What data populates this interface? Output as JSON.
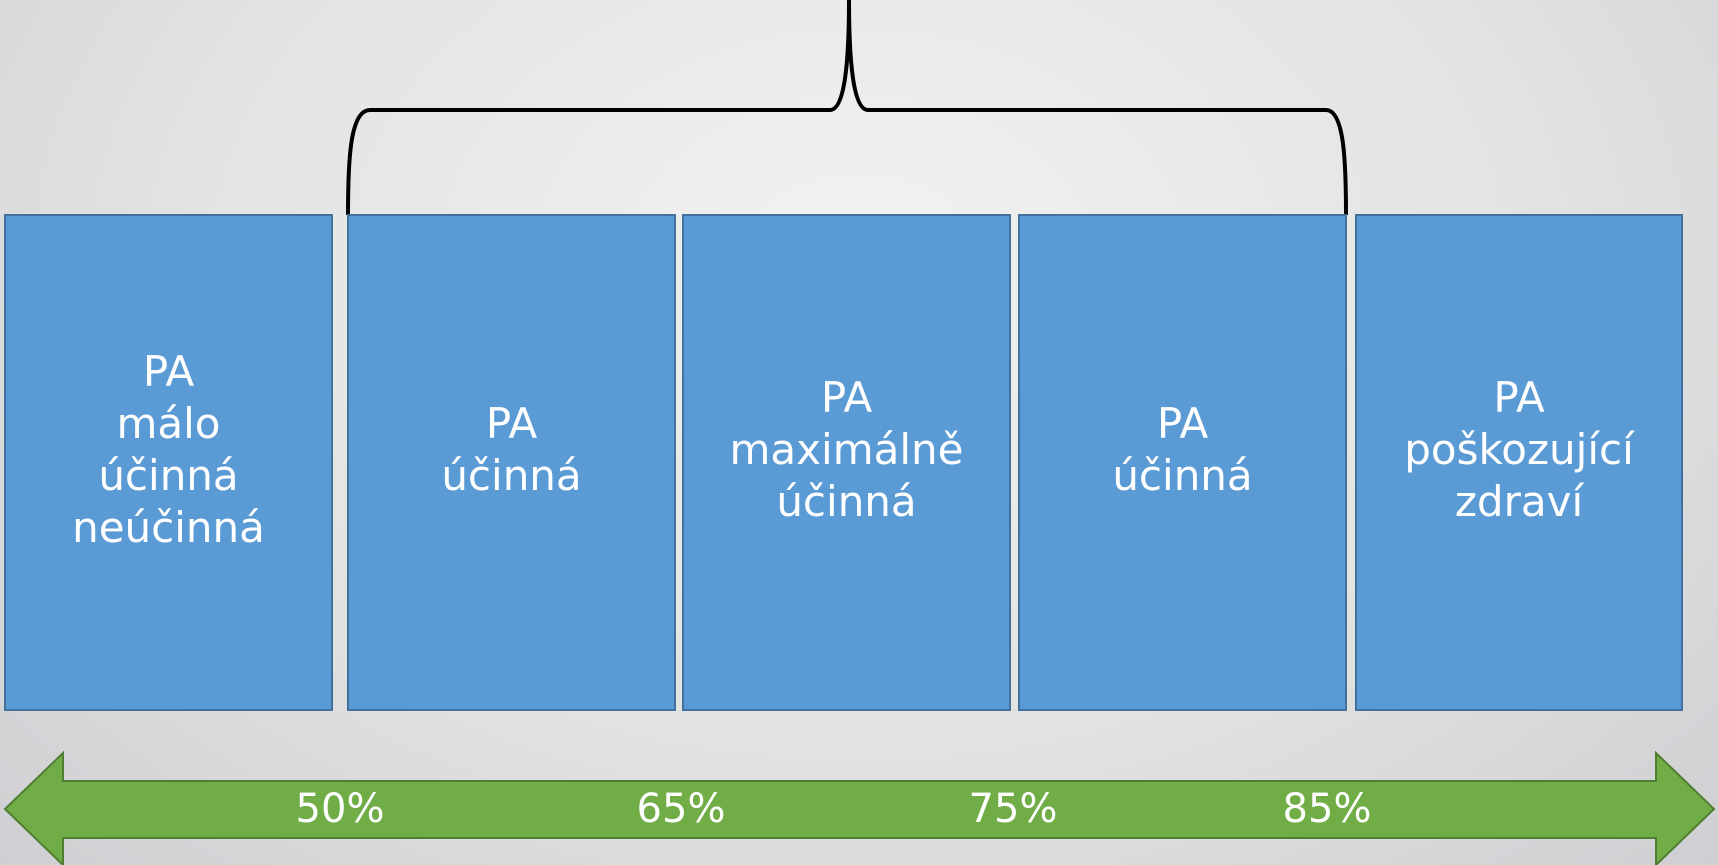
{
  "boxes": [
    {
      "lines": [
        "PA",
        "málo",
        "účinná",
        "neúčinná"
      ]
    },
    {
      "lines": [
        "PA",
        "účinná"
      ]
    },
    {
      "lines": [
        "PA",
        "maximálně",
        "účinná"
      ]
    },
    {
      "lines": [
        "PA",
        "účinná"
      ]
    },
    {
      "lines": [
        "PA",
        "poškozující",
        "zdraví"
      ]
    }
  ],
  "scale": [
    "50%",
    "65%",
    "75%",
    "85%"
  ]
}
